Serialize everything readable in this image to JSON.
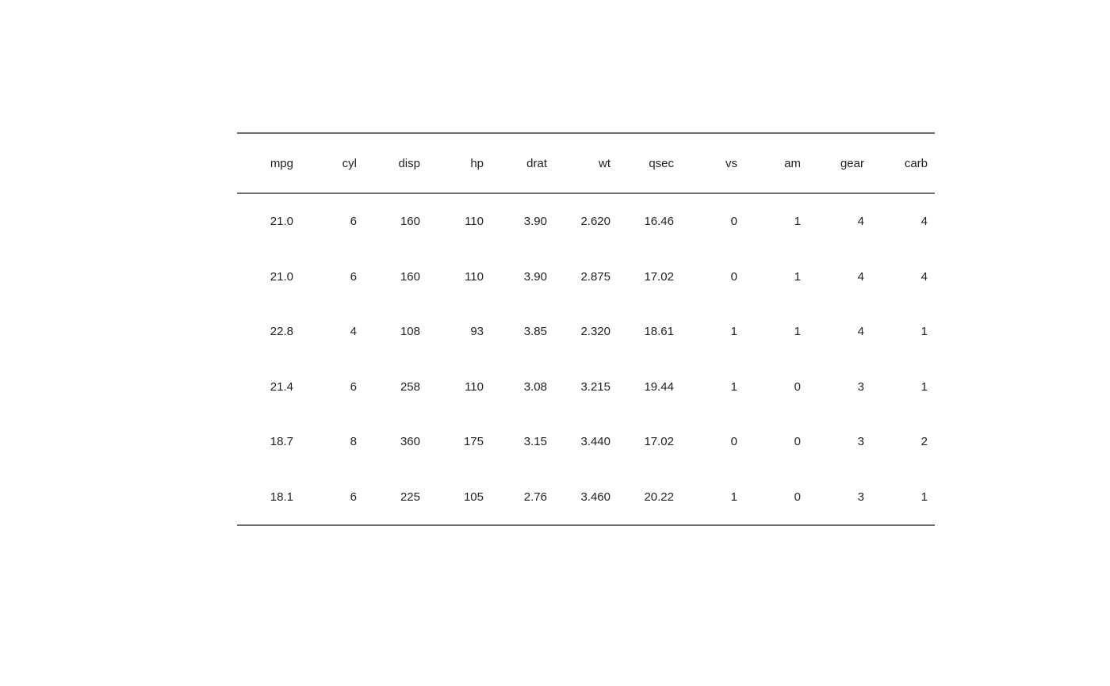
{
  "table": {
    "columns": [
      "mpg",
      "cyl",
      "disp",
      "hp",
      "drat",
      "wt",
      "qsec",
      "vs",
      "am",
      "gear",
      "carb"
    ],
    "rows": [
      [
        "21.0",
        "6",
        "160",
        "110",
        "3.90",
        "2.620",
        "16.46",
        "0",
        "1",
        "4",
        "4"
      ],
      [
        "21.0",
        "6",
        "160",
        "110",
        "3.90",
        "2.875",
        "17.02",
        "0",
        "1",
        "4",
        "4"
      ],
      [
        "22.8",
        "4",
        "108",
        "93",
        "3.85",
        "2.320",
        "18.61",
        "1",
        "1",
        "4",
        "1"
      ],
      [
        "21.4",
        "6",
        "258",
        "110",
        "3.08",
        "3.215",
        "19.44",
        "1",
        "0",
        "3",
        "1"
      ],
      [
        "18.7",
        "8",
        "360",
        "175",
        "3.15",
        "3.440",
        "17.02",
        "0",
        "0",
        "3",
        "2"
      ],
      [
        "18.1",
        "6",
        "225",
        "105",
        "2.76",
        "3.460",
        "20.22",
        "1",
        "0",
        "3",
        "1"
      ]
    ]
  },
  "colors": {
    "rule": "#6e6e6e",
    "text": "#222222"
  }
}
